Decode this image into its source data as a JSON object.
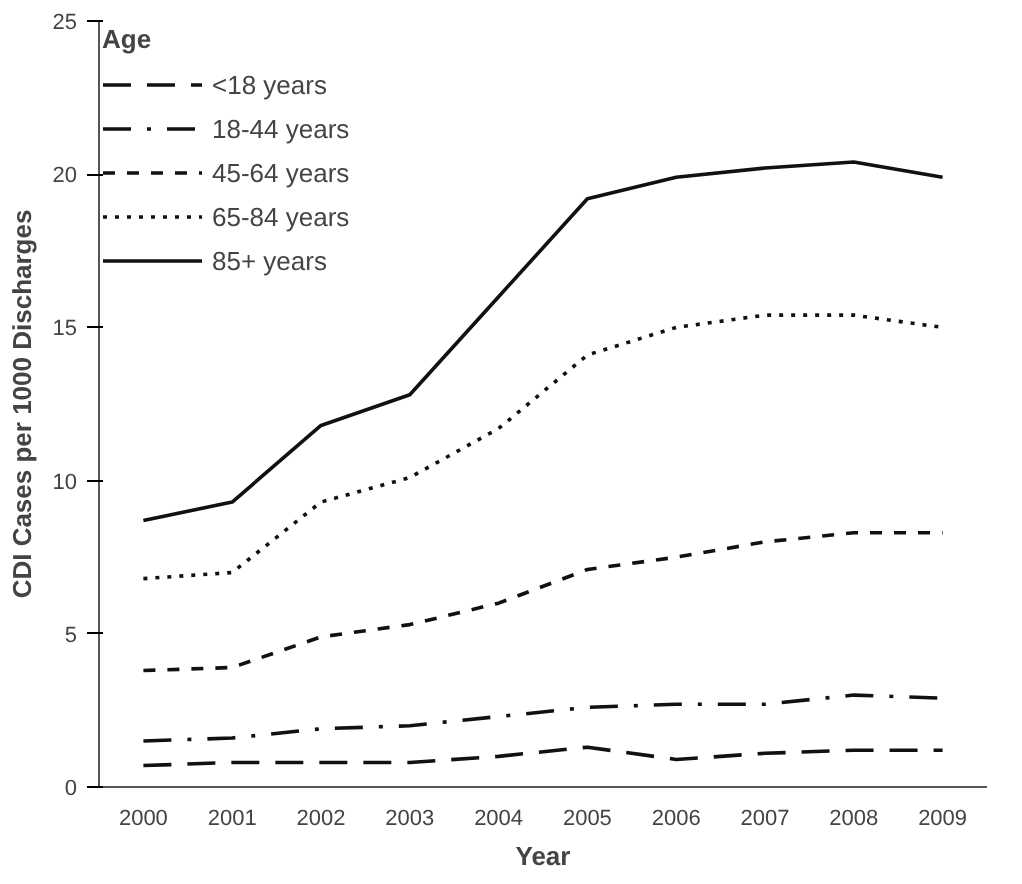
{
  "chart_data": {
    "type": "line",
    "xlabel": "Year",
    "ylabel": "CDI Cases per 1000 Discharges",
    "legend_title": "Age",
    "legend": "top left",
    "grid": false,
    "marker": "none",
    "categories": [
      "2000",
      "2001",
      "2002",
      "2003",
      "2004",
      "2005",
      "2006",
      "2007",
      "2008",
      "2009"
    ],
    "ylim": [
      0,
      25
    ],
    "yticks": [
      0,
      5,
      10,
      15,
      20,
      25
    ],
    "series": [
      {
        "name": "<18 years",
        "color": "#111111",
        "line_style": "longdash",
        "values": [
          0.7,
          0.8,
          0.8,
          0.8,
          1.0,
          1.3,
          0.9,
          1.1,
          1.2,
          1.2
        ]
      },
      {
        "name": "18-44 years",
        "color": "#111111",
        "line_style": "dashdot",
        "values": [
          1.5,
          1.6,
          1.9,
          2.0,
          2.3,
          2.6,
          2.7,
          2.7,
          3.0,
          2.9
        ]
      },
      {
        "name": "45-64 years",
        "color": "#111111",
        "line_style": "dashed",
        "values": [
          3.8,
          3.9,
          4.9,
          5.3,
          6.0,
          7.1,
          7.5,
          8.0,
          8.3,
          8.3
        ]
      },
      {
        "name": "65-84 years",
        "color": "#111111",
        "line_style": "dotted",
        "values": [
          6.8,
          7.0,
          9.3,
          10.1,
          11.7,
          14.1,
          15.0,
          15.4,
          15.4,
          15.0
        ]
      },
      {
        "name": "85+ years",
        "color": "#111111",
        "line_style": "solid",
        "values": [
          8.7,
          9.3,
          11.8,
          12.8,
          16.0,
          19.2,
          19.9,
          20.2,
          20.4,
          19.9
        ]
      }
    ]
  }
}
